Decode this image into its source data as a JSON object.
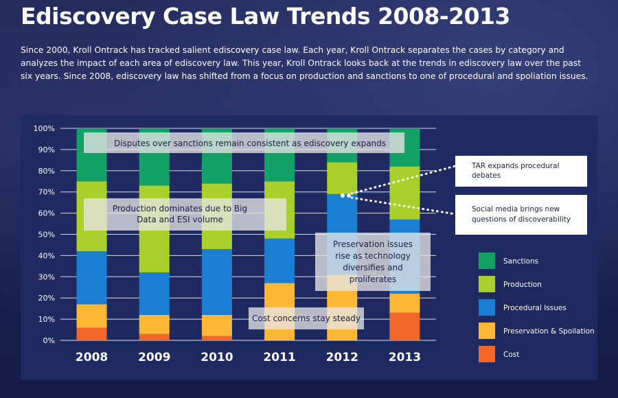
{
  "title": "Ediscovery Case Law Trends 2008-2013",
  "intro": "Since 2000, Kroll Ontrack has tracked salient ediscovery case law. Each year, Kroll Ontrack separates the cases by category and analyzes the impact of each area of ediscovery law. This year, Kroll Ontrack looks back at the trends in ediscovery law over the past six years. Since 2008, ediscovery law has shifted from a focus on production and sanctions to one of procedural and spoliation issues.",
  "colors": {
    "Sanctions": "#12a167",
    "Production": "#a8cf2a",
    "Procedural Issues": "#1a7fd3",
    "Preservation & Spoilation": "#fdb734",
    "Cost": "#f2682a"
  },
  "chart_data": {
    "type": "bar",
    "stacked": true,
    "categories": [
      "2008",
      "2009",
      "2010",
      "2011",
      "2012",
      "2013"
    ],
    "series": [
      {
        "name": "Cost",
        "values": [
          6,
          3,
          2,
          0,
          0,
          13
        ]
      },
      {
        "name": "Preservation & Spoilation",
        "values": [
          11,
          9,
          10,
          27,
          31,
          9
        ]
      },
      {
        "name": "Procedural Issues",
        "values": [
          25,
          20,
          31,
          21,
          38,
          35
        ]
      },
      {
        "name": "Production",
        "values": [
          33,
          41,
          31,
          27,
          15,
          25
        ]
      },
      {
        "name": "Sanctions",
        "values": [
          25,
          27,
          26,
          25,
          16,
          18
        ]
      }
    ],
    "yticks": [
      "0%",
      "10%",
      "20%",
      "30%",
      "40%",
      "50%",
      "60%",
      "70%",
      "80%",
      "90%",
      "100%"
    ],
    "ylim": [
      0,
      100
    ],
    "grid": true,
    "legend_position": "right",
    "legend": [
      "Sanctions",
      "Production",
      "Procedural Issues",
      "Preservation & Spoilation",
      "Cost"
    ],
    "annotations": [
      "Disputes over sanctions remain consistent as ediscovery expands",
      "Production dominates due to Big Data and ESI volume",
      "Preservation issues rise as technology diversifies and proliferates",
      "Cost concerns stay steady"
    ],
    "callouts": [
      "TAR expands procedural debates",
      "Social media brings new questions of discoverability"
    ]
  }
}
